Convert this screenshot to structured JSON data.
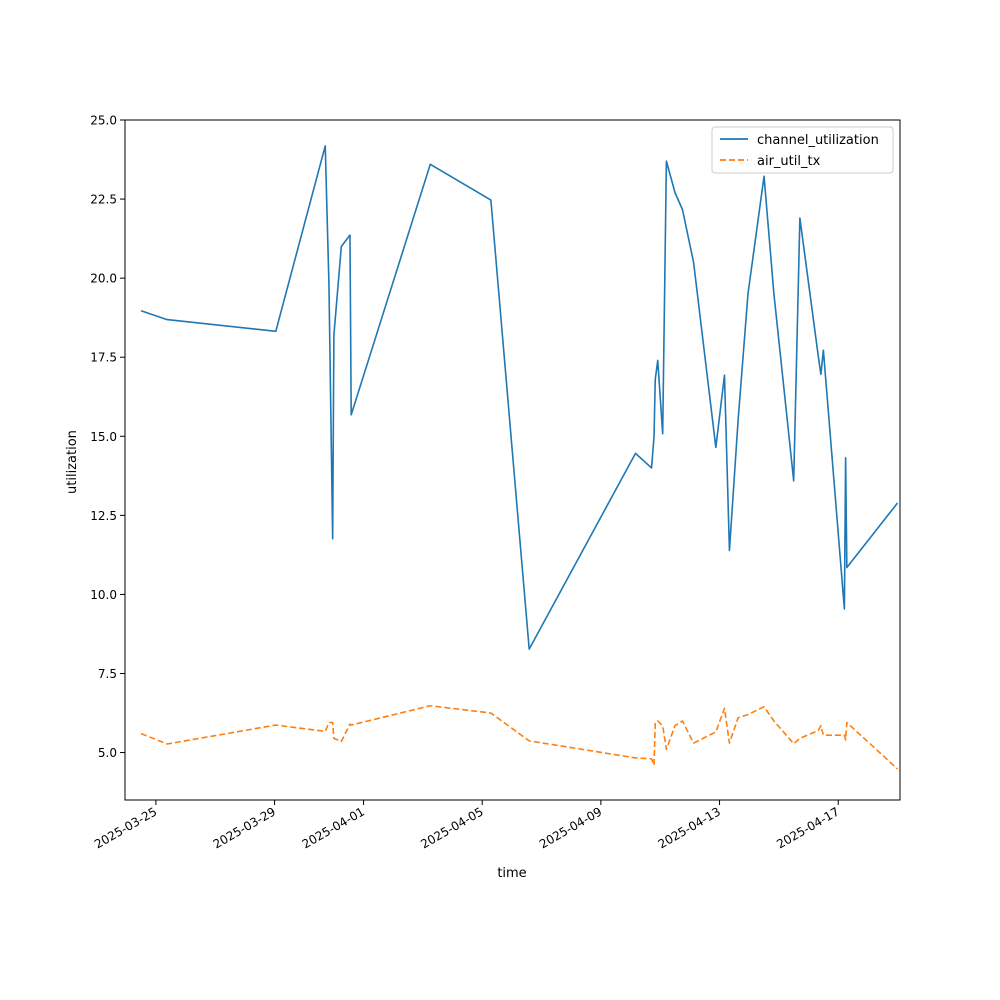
{
  "chart_data": {
    "type": "line",
    "xlabel": "time",
    "ylabel": "utilization",
    "x_axis_type": "date",
    "xlim": [
      "2025-03-23T23:00",
      "2025-04-19T02:00"
    ],
    "ylim": [
      3.5,
      25.0
    ],
    "x_ticks": [
      "2025-03-25",
      "2025-03-29",
      "2025-04-01",
      "2025-04-05",
      "2025-04-09",
      "2025-04-13",
      "2025-04-17"
    ],
    "y_ticks": [
      5.0,
      7.5,
      10.0,
      12.5,
      15.0,
      17.5,
      20.0,
      22.5,
      25.0
    ],
    "grid": false,
    "legend_position": "top-right",
    "series": [
      {
        "name": "channel_utilization",
        "color": "#1f77b4",
        "dash": "solid",
        "points": [
          [
            "2025-03-24T12:00",
            18.97
          ],
          [
            "2025-03-25T09:00",
            18.69
          ],
          [
            "2025-03-29T01:00",
            18.32
          ],
          [
            "2025-03-30T17:00",
            24.18
          ],
          [
            "2025-03-30T20:00",
            19.8
          ],
          [
            "2025-03-30T23:00",
            11.76
          ],
          [
            "2025-03-31T00:00",
            18.2
          ],
          [
            "2025-03-31T06:00",
            21.0
          ],
          [
            "2025-03-31T13:00",
            21.36
          ],
          [
            "2025-03-31T14:00",
            15.68
          ],
          [
            "2025-04-03T06:00",
            23.6
          ],
          [
            "2025-04-05T07:00",
            22.47
          ],
          [
            "2025-04-06T14:00",
            8.27
          ],
          [
            "2025-04-10T04:00",
            14.46
          ],
          [
            "2025-04-10T17:00",
            14.0
          ],
          [
            "2025-04-10T19:00",
            15.0
          ],
          [
            "2025-04-10T20:00",
            16.8
          ],
          [
            "2025-04-10T22:00",
            17.4
          ],
          [
            "2025-04-11T02:00",
            15.08
          ],
          [
            "2025-04-11T05:00",
            23.7
          ],
          [
            "2025-04-11T12:00",
            22.7
          ],
          [
            "2025-04-11T18:00",
            22.17
          ],
          [
            "2025-04-12T03:00",
            20.5
          ],
          [
            "2025-04-12T21:00",
            14.65
          ],
          [
            "2025-04-13T04:00",
            16.93
          ],
          [
            "2025-04-13T08:00",
            11.39
          ],
          [
            "2025-04-13T15:00",
            15.5
          ],
          [
            "2025-04-13T23:00",
            19.5
          ],
          [
            "2025-04-14T12:00",
            23.22
          ],
          [
            "2025-04-14T20:00",
            19.5
          ],
          [
            "2025-04-15T12:00",
            13.59
          ],
          [
            "2025-04-15T17:00",
            21.9
          ],
          [
            "2025-04-16T08:00",
            17.5
          ],
          [
            "2025-04-16T10:00",
            16.96
          ],
          [
            "2025-04-16T12:00",
            17.72
          ],
          [
            "2025-04-17T05:00",
            9.54
          ],
          [
            "2025-04-17T06:00",
            14.32
          ],
          [
            "2025-04-17T07:00",
            10.85
          ],
          [
            "2025-04-19T00:00",
            12.89
          ]
        ]
      },
      {
        "name": "air_util_tx",
        "color": "#ff7f0e",
        "dash": "dashed",
        "points": [
          [
            "2025-03-24T12:00",
            5.6
          ],
          [
            "2025-03-25T09:00",
            5.27
          ],
          [
            "2025-03-29T01:00",
            5.87
          ],
          [
            "2025-03-30T17:00",
            5.67
          ],
          [
            "2025-03-30T20:00",
            5.95
          ],
          [
            "2025-03-30T23:00",
            5.95
          ],
          [
            "2025-03-31T00:00",
            5.45
          ],
          [
            "2025-03-31T06:00",
            5.35
          ],
          [
            "2025-03-31T13:00",
            5.9
          ],
          [
            "2025-03-31T14:00",
            5.87
          ],
          [
            "2025-04-03T06:00",
            6.48
          ],
          [
            "2025-04-05T07:00",
            6.25
          ],
          [
            "2025-04-06T14:00",
            5.37
          ],
          [
            "2025-04-10T04:00",
            4.83
          ],
          [
            "2025-04-10T17:00",
            4.8
          ],
          [
            "2025-04-10T19:00",
            4.6
          ],
          [
            "2025-04-10T20:00",
            5.95
          ],
          [
            "2025-04-10T22:00",
            6.0
          ],
          [
            "2025-04-11T02:00",
            5.85
          ],
          [
            "2025-04-11T05:00",
            5.1
          ],
          [
            "2025-04-11T12:00",
            5.85
          ],
          [
            "2025-04-11T18:00",
            6.0
          ],
          [
            "2025-04-12T03:00",
            5.3
          ],
          [
            "2025-04-12T21:00",
            5.65
          ],
          [
            "2025-04-13T04:00",
            6.4
          ],
          [
            "2025-04-13T08:00",
            5.3
          ],
          [
            "2025-04-13T15:00",
            6.1
          ],
          [
            "2025-04-13T23:00",
            6.2
          ],
          [
            "2025-04-14T12:00",
            6.45
          ],
          [
            "2025-04-14T20:00",
            6.0
          ],
          [
            "2025-04-15T12:00",
            5.28
          ],
          [
            "2025-04-15T17:00",
            5.45
          ],
          [
            "2025-04-16T08:00",
            5.7
          ],
          [
            "2025-04-16T10:00",
            5.85
          ],
          [
            "2025-04-16T12:00",
            5.55
          ],
          [
            "2025-04-17T05:00",
            5.55
          ],
          [
            "2025-04-17T06:00",
            5.4
          ],
          [
            "2025-04-17T07:00",
            5.95
          ],
          [
            "2025-04-19T00:00",
            4.48
          ]
        ]
      }
    ]
  }
}
